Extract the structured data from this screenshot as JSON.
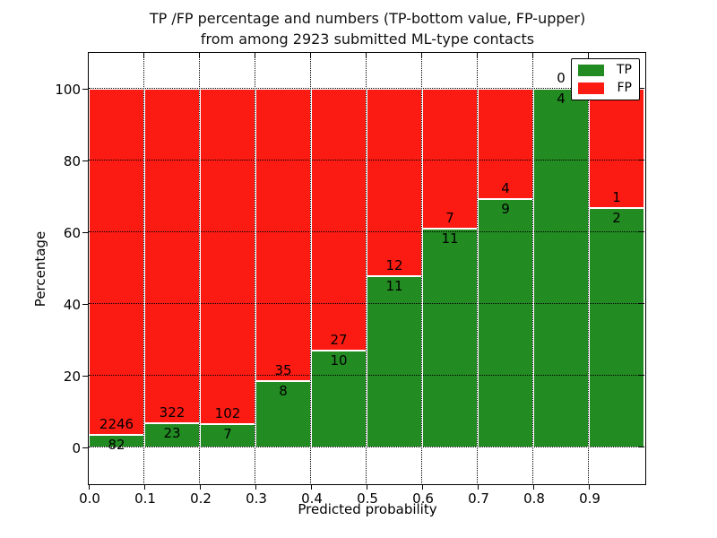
{
  "chart_data": {
    "type": "bar",
    "stacked": true,
    "normalized_to_percent": true,
    "title_line1": "TP /FP percentage and numbers (TP-bottom value, FP-upper)",
    "title_line2": "from among 2923 submitted ML-type contacts",
    "xlabel": "Predicted probability",
    "ylabel": "Percentage",
    "total_contacts": 2923,
    "bins": [
      {
        "range": "0.0-0.1",
        "tp": 82,
        "fp": 2246
      },
      {
        "range": "0.1-0.2",
        "tp": 23,
        "fp": 322
      },
      {
        "range": "0.2-0.3",
        "tp": 7,
        "fp": 102
      },
      {
        "range": "0.3-0.4",
        "tp": 8,
        "fp": 35
      },
      {
        "range": "0.4-0.5",
        "tp": 10,
        "fp": 27
      },
      {
        "range": "0.5-0.6",
        "tp": 11,
        "fp": 12
      },
      {
        "range": "0.6-0.7",
        "tp": 11,
        "fp": 7
      },
      {
        "range": "0.7-0.8",
        "tp": 9,
        "fp": 4
      },
      {
        "range": "0.8-0.9",
        "tp": 4,
        "fp": 0
      },
      {
        "range": "0.9-1.0",
        "tp": 2,
        "fp": 1
      }
    ],
    "xticks": [
      "0.0",
      "0.1",
      "0.2",
      "0.3",
      "0.4",
      "0.5",
      "0.6",
      "0.7",
      "0.8",
      "0.9"
    ],
    "yticks": [
      "0",
      "20",
      "40",
      "60",
      "80",
      "100"
    ],
    "xlim": [
      0.0,
      1.0
    ],
    "ylim": [
      -10,
      110
    ],
    "grid": "dotted",
    "legend_position": "upper-right",
    "legend": [
      {
        "label": "TP",
        "color": "#228b22"
      },
      {
        "label": "FP",
        "color": "#fc1b13"
      }
    ]
  }
}
